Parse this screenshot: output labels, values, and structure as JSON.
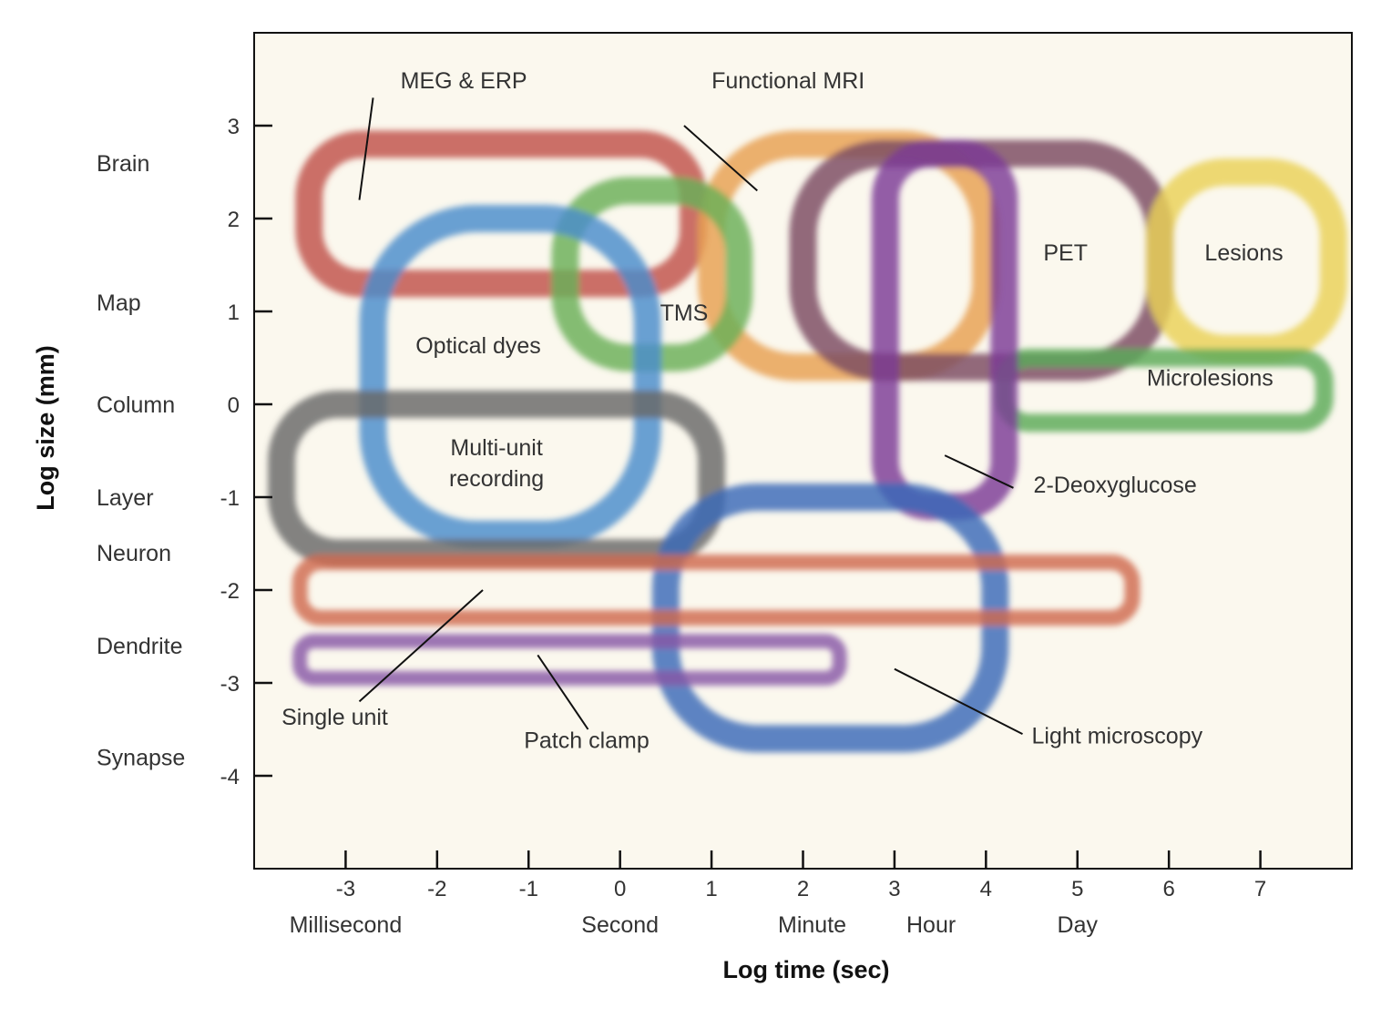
{
  "chart_data": {
    "type": "area",
    "xlabel": "Log time (sec)",
    "ylabel": "Log size (mm)",
    "xlim": [
      -4,
      8
    ],
    "ylim": [
      -5,
      4
    ],
    "x_ticks": [
      -3,
      -2,
      -1,
      0,
      1,
      2,
      3,
      4,
      5,
      6,
      7
    ],
    "y_ticks": [
      3,
      2,
      1,
      0,
      -1,
      -2,
      -3,
      -4
    ],
    "x_scale_labels": [
      {
        "text": "Millisecond",
        "x": -3
      },
      {
        "text": "Second",
        "x": 0
      },
      {
        "text": "Minute",
        "x": 2.1
      },
      {
        "text": "Hour",
        "x": 3.4
      },
      {
        "text": "Day",
        "x": 5
      }
    ],
    "y_scale_labels": [
      {
        "text": "Brain",
        "y": 2.6
      },
      {
        "text": "Map",
        "y": 1.1
      },
      {
        "text": "Column",
        "y": 0
      },
      {
        "text": "Layer",
        "y": -1
      },
      {
        "text": "Neuron",
        "y": -1.6
      },
      {
        "text": "Dendrite",
        "y": -2.6
      },
      {
        "text": "Synapse",
        "y": -3.8
      }
    ],
    "series": [
      {
        "name": "MEG & ERP",
        "color": "#c0504a",
        "x": [
          -3.4,
          0.8
        ],
        "y": [
          1.3,
          2.8
        ],
        "label_at": [
          -2.4,
          3.4
        ],
        "pointer": [
          [
            -2.7,
            3.3
          ],
          [
            -2.85,
            2.2
          ]
        ]
      },
      {
        "name": "Functional MRI",
        "color": "#e8a050",
        "x": [
          1.0,
          4.0
        ],
        "y": [
          0.4,
          2.8
        ],
        "label_at": [
          1.0,
          3.4
        ],
        "pointer": [
          [
            0.7,
            3.0
          ],
          [
            1.5,
            2.3
          ]
        ]
      },
      {
        "name": "TMS",
        "color": "#6ab058",
        "x": [
          -0.6,
          1.3
        ],
        "y": [
          0.5,
          2.3
        ],
        "label_at": [
          0.7,
          0.9
        ]
      },
      {
        "name": "Optical dyes",
        "color": "#4a8ccc",
        "x": [
          -2.7,
          0.3
        ],
        "y": [
          -1.4,
          2.0
        ],
        "label_at": [
          -1.55,
          0.55
        ]
      },
      {
        "name": "PET",
        "color": "#7a4a60",
        "x": [
          2.0,
          5.9
        ],
        "y": [
          0.4,
          2.7
        ],
        "label_at": [
          4.87,
          1.55
        ]
      },
      {
        "name": "Lesions",
        "color": "#ead257",
        "x": [
          5.9,
          7.8
        ],
        "y": [
          0.6,
          2.5
        ],
        "label_at": [
          6.82,
          1.55
        ]
      },
      {
        "name": "Microlesions",
        "color": "#5aaa58",
        "x": [
          4.2,
          7.7
        ],
        "y": [
          -0.2,
          0.5
        ],
        "label_at": [
          6.45,
          0.2
        ]
      },
      {
        "name": "2-Deoxyglucose",
        "color": "#7b3a96",
        "x": [
          2.9,
          4.2
        ],
        "y": [
          -1.1,
          2.7
        ],
        "label_at": [
          4.52,
          -0.95
        ],
        "pointer": [
          [
            4.3,
            -0.9
          ],
          [
            3.55,
            -0.55
          ]
        ]
      },
      {
        "name": "Multi-unit recording",
        "color": "#686868",
        "x": [
          -3.7,
          1.0
        ],
        "y": [
          -1.6,
          0.0
        ],
        "label_at": [
          -1.35,
          -0.55
        ]
      },
      {
        "name": "Light microscopy",
        "color": "#3a6ab8",
        "x": [
          0.5,
          4.1
        ],
        "y": [
          -3.6,
          -1.0
        ],
        "label_at": [
          4.5,
          -3.65
        ],
        "pointer": [
          [
            4.4,
            -3.55
          ],
          [
            3.0,
            -2.85
          ]
        ]
      },
      {
        "name": "Single unit",
        "color": "#d06a4e",
        "x": [
          -3.5,
          5.6
        ],
        "y": [
          -2.3,
          -1.7
        ],
        "label_at": [
          -3.7,
          -3.45
        ],
        "pointer": [
          [
            -2.85,
            -3.2
          ],
          [
            -1.5,
            -2.0
          ]
        ]
      },
      {
        "name": "Patch clamp",
        "color": "#8858a6",
        "x": [
          -3.5,
          2.4
        ],
        "y": [
          -2.95,
          -2.55
        ],
        "label_at": [
          -1.05,
          -3.7
        ],
        "pointer": [
          [
            -0.35,
            -3.5
          ],
          [
            -0.9,
            -2.7
          ]
        ]
      }
    ]
  }
}
